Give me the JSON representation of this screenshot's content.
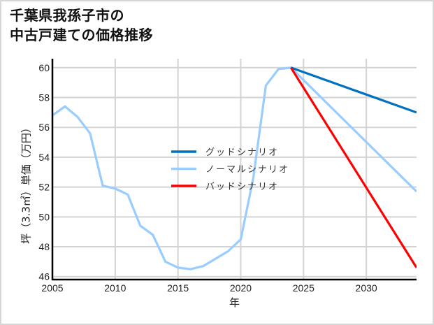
{
  "title": {
    "line1": "千葉県我孫子市の",
    "line2": "中古戸建ての価格推移"
  },
  "chart_data": {
    "type": "line",
    "title": "千葉県我孫子市の中古戸建ての価格推移",
    "xlabel": "年",
    "ylabel": "坪（3.3㎡）単価（万円）",
    "xlim": [
      2005,
      2034
    ],
    "ylim": [
      45.8,
      60.6
    ],
    "xticks": [
      2005,
      2010,
      2015,
      2020,
      2025,
      2030
    ],
    "yticks": [
      46,
      48,
      50,
      52,
      54,
      56,
      58,
      60
    ],
    "grid": true,
    "legend_position": "center",
    "series": [
      {
        "name": "グッドシナリオ",
        "color": "#0070c0",
        "x": [
          2024,
          2034
        ],
        "values": [
          60.0,
          57.0
        ]
      },
      {
        "name": "ノーマルシナリオ",
        "color": "#99ccff",
        "x": [
          2005,
          2006,
          2007,
          2008,
          2009,
          2010,
          2011,
          2012,
          2013,
          2014,
          2015,
          2016,
          2017,
          2018,
          2019,
          2020,
          2021,
          2022,
          2023,
          2024,
          2034
        ],
        "values": [
          56.8,
          57.4,
          56.7,
          55.6,
          52.1,
          51.9,
          51.5,
          49.4,
          48.8,
          47.0,
          46.6,
          46.5,
          46.7,
          47.2,
          47.7,
          48.5,
          52.6,
          58.8,
          59.9,
          60.0,
          51.7
        ]
      },
      {
        "name": "バッドシナリオ",
        "color": "#ff0000",
        "x": [
          2024,
          2034
        ],
        "values": [
          60.0,
          46.6
        ]
      }
    ]
  }
}
